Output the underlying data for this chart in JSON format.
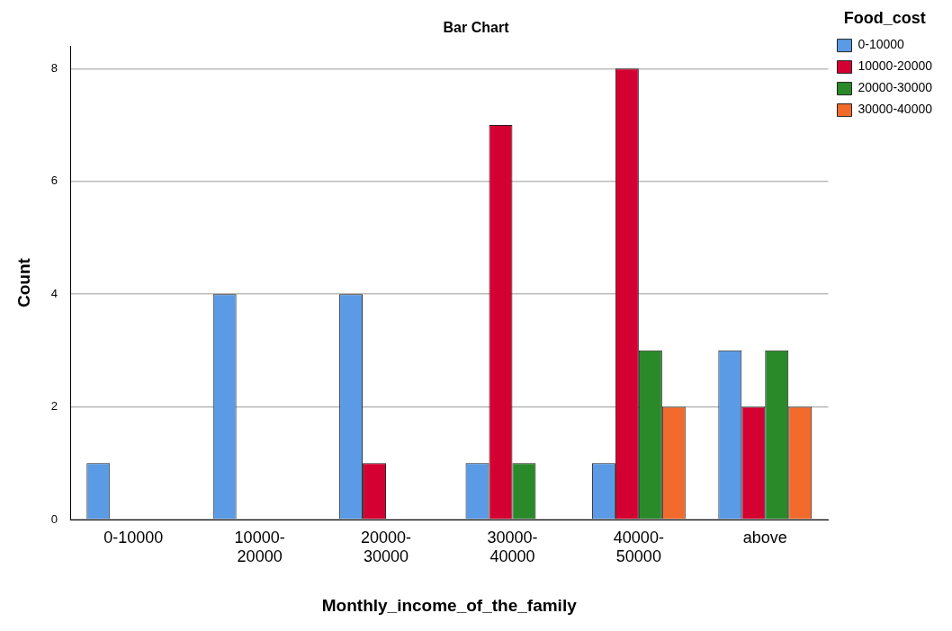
{
  "chart_data": {
    "type": "bar",
    "title": "Bar Chart",
    "xlabel": "Monthly_income_of_the_family",
    "ylabel": "Count",
    "legend_title": "Food_cost",
    "categories": [
      "0-10000",
      "10000-20000",
      "20000-30000",
      "30000-40000",
      "40000-50000",
      "above"
    ],
    "series": [
      {
        "name": "0-10000",
        "color": "#5b9be6",
        "values": [
          1,
          4,
          4,
          1,
          1,
          3
        ]
      },
      {
        "name": "10000-20000",
        "color": "#d50032",
        "values": [
          null,
          null,
          1,
          7,
          8,
          2
        ]
      },
      {
        "name": "20000-30000",
        "color": "#2a8a2a",
        "values": [
          null,
          null,
          null,
          1,
          3,
          3
        ]
      },
      {
        "name": "30000-40000",
        "color": "#f26b2c",
        "values": [
          null,
          null,
          null,
          null,
          2,
          2
        ]
      }
    ],
    "ylim": [
      0,
      8.4
    ],
    "yticks": [
      0,
      2,
      4,
      6,
      8
    ],
    "grid": "y",
    "legend": "top right"
  }
}
